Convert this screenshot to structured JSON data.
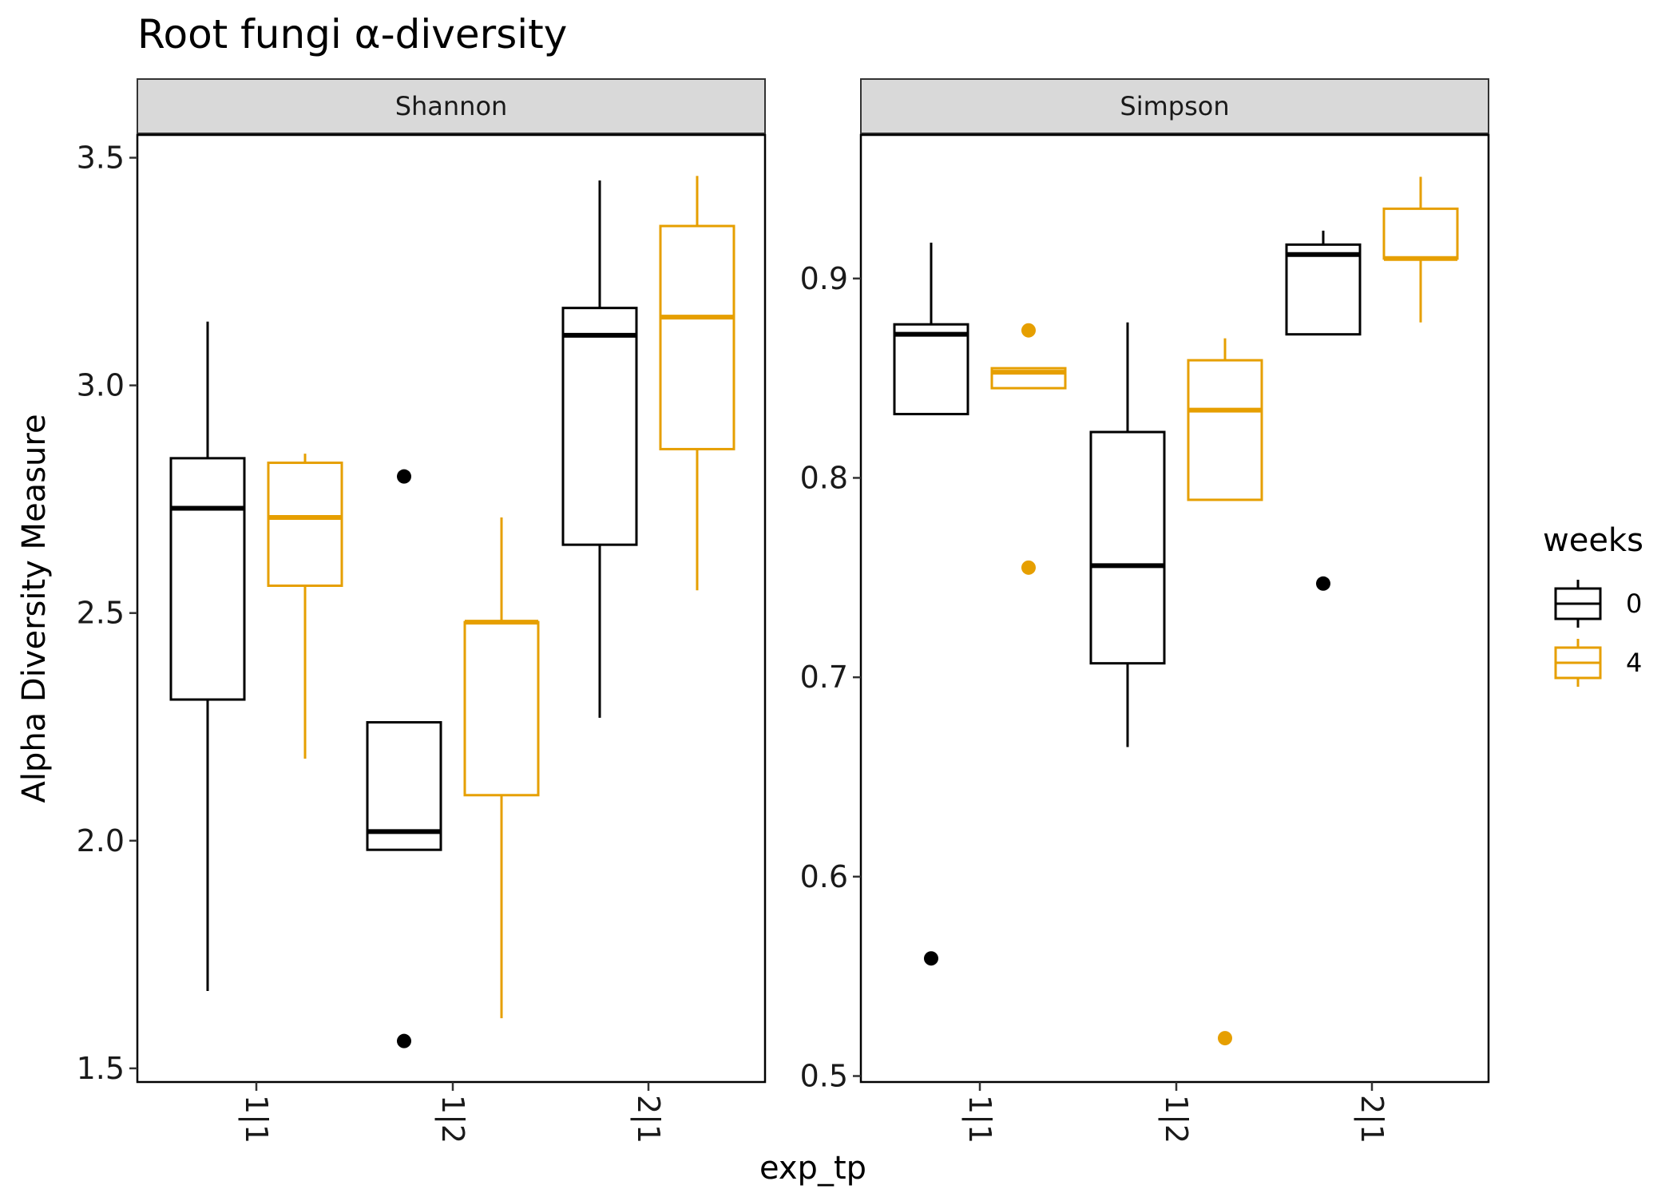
{
  "chart_data": {
    "type": "boxplot",
    "title": "Root fungi α-diversity",
    "xlabel": "exp_tp",
    "ylabel": "Alpha Diversity Measure",
    "categories": [
      "1|1",
      "1|2",
      "2|1"
    ],
    "legend": {
      "title": "weeks",
      "position": "right",
      "entries": [
        {
          "label": "0",
          "color": "#000000"
        },
        {
          "label": "4",
          "color": "#E69F00"
        }
      ]
    },
    "facets": [
      {
        "name": "Shannon",
        "ylim": [
          1.47,
          3.55
        ],
        "yticks": [
          1.5,
          2.0,
          2.5,
          3.0,
          3.5
        ],
        "ytick_labels": [
          "1.5",
          "2.0",
          "2.5",
          "3.0",
          "3.5"
        ],
        "series": [
          {
            "name": "0",
            "color": "#000000",
            "boxes": [
              {
                "category": "1|1",
                "whisker_low": 1.67,
                "q1": 2.31,
                "median": 2.73,
                "q3": 2.84,
                "whisker_high": 3.14,
                "outliers": []
              },
              {
                "category": "1|2",
                "whisker_low": 1.98,
                "q1": 1.98,
                "median": 2.02,
                "q3": 2.26,
                "whisker_high": 2.26,
                "outliers": [
                  2.8,
                  1.56
                ]
              },
              {
                "category": "2|1",
                "whisker_low": 2.27,
                "q1": 2.65,
                "median": 3.11,
                "q3": 3.17,
                "whisker_high": 3.45,
                "outliers": []
              }
            ]
          },
          {
            "name": "4",
            "color": "#E69F00",
            "boxes": [
              {
                "category": "1|1",
                "whisker_low": 2.18,
                "q1": 2.56,
                "median": 2.71,
                "q3": 2.83,
                "whisker_high": 2.85,
                "outliers": []
              },
              {
                "category": "1|2",
                "whisker_low": 1.61,
                "q1": 2.1,
                "median": 2.48,
                "q3": 2.48,
                "whisker_high": 2.71,
                "outliers": []
              },
              {
                "category": "2|1",
                "whisker_low": 2.55,
                "q1": 2.86,
                "median": 3.15,
                "q3": 3.35,
                "whisker_high": 3.46,
                "outliers": []
              }
            ]
          }
        ]
      },
      {
        "name": "Simpson",
        "ylim": [
          0.497,
          0.972
        ],
        "yticks": [
          0.5,
          0.6,
          0.7,
          0.8,
          0.9
        ],
        "ytick_labels": [
          "0.5",
          "0.6",
          "0.7",
          "0.8",
          "0.9"
        ],
        "series": [
          {
            "name": "0",
            "color": "#000000",
            "boxes": [
              {
                "category": "1|1",
                "whisker_low": 0.832,
                "q1": 0.832,
                "median": 0.872,
                "q3": 0.877,
                "whisker_high": 0.918,
                "outliers": [
                  0.559
                ]
              },
              {
                "category": "1|2",
                "whisker_low": 0.665,
                "q1": 0.707,
                "median": 0.756,
                "q3": 0.823,
                "whisker_high": 0.878,
                "outliers": []
              },
              {
                "category": "2|1",
                "whisker_low": 0.872,
                "q1": 0.872,
                "median": 0.912,
                "q3": 0.917,
                "whisker_high": 0.924,
                "outliers": [
                  0.747
                ]
              }
            ]
          },
          {
            "name": "4",
            "color": "#E69F00",
            "boxes": [
              {
                "category": "1|1",
                "whisker_low": 0.845,
                "q1": 0.845,
                "median": 0.853,
                "q3": 0.855,
                "whisker_high": 0.855,
                "outliers": [
                  0.874,
                  0.755
                ]
              },
              {
                "category": "1|2",
                "whisker_low": 0.789,
                "q1": 0.789,
                "median": 0.834,
                "q3": 0.859,
                "whisker_high": 0.87,
                "outliers": [
                  0.519
                ]
              },
              {
                "category": "2|1",
                "whisker_low": 0.878,
                "q1": 0.91,
                "median": 0.91,
                "q3": 0.935,
                "whisker_high": 0.951,
                "outliers": []
              }
            ]
          }
        ]
      }
    ]
  }
}
